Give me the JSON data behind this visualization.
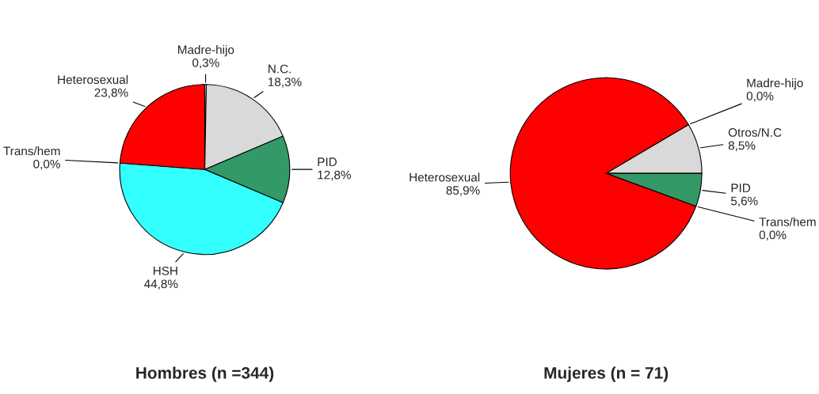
{
  "chart_data": [
    {
      "type": "pie",
      "title": "Hombres (n =344)",
      "categories": [
        "Madre-hijo",
        "N.C.",
        "PID",
        "HSH",
        "Trans/hem",
        "Heterosexual"
      ],
      "values": [
        0.3,
        18.3,
        12.8,
        44.8,
        0.0,
        23.8
      ],
      "value_labels": [
        "0,3%",
        "18,3%",
        "12,8%",
        "44,8%",
        "0,0%",
        "23,8%"
      ],
      "colors": [
        "#ffffff",
        "#d9d9d9",
        "#339966",
        "#33ffff",
        "#000080",
        "#ff0000"
      ]
    },
    {
      "type": "pie",
      "title": "Mujeres (n = 71)",
      "categories": [
        "Otros/N.C",
        "PID",
        "Trans/hem",
        "Heterosexual",
        "Madre-hijo"
      ],
      "values": [
        8.5,
        5.6,
        0.0,
        85.9,
        0.0
      ],
      "value_labels": [
        "8,5%",
        "5,6%",
        "0,0%",
        "85,9%",
        "0,0%"
      ],
      "colors": [
        "#d9d9d9",
        "#339966",
        "#000080",
        "#ff0000",
        "#ffffff"
      ]
    }
  ]
}
